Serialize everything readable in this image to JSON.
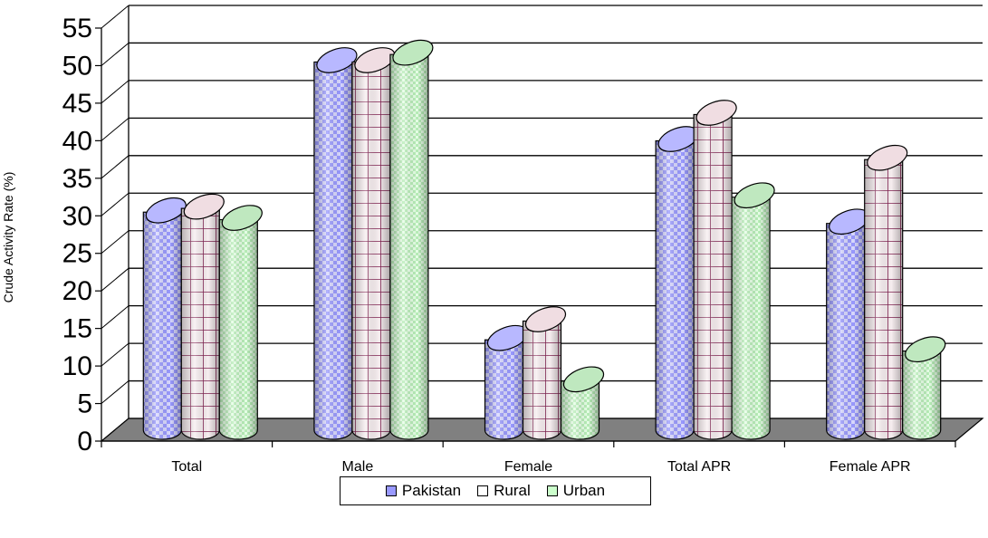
{
  "chart_data": {
    "type": "bar",
    "style": "3d-cylinder",
    "title": "",
    "ylabel": "Crude Activity Rate (%)",
    "xlabel": "",
    "ylim": [
      0,
      55
    ],
    "ytick_step": 5,
    "grid": true,
    "legend_position": "bottom",
    "categories": [
      "Total",
      "Male",
      "Female",
      "Total APR",
      "Female APR"
    ],
    "series": [
      {
        "name": "Pakistan",
        "values": [
          30,
          50,
          13,
          39.5,
          28.5
        ],
        "color": "#9999ff",
        "pattern": "checker"
      },
      {
        "name": "Rural",
        "values": [
          30.5,
          50,
          15.5,
          43,
          37
        ],
        "color": "#f2dede",
        "pattern": "grid"
      },
      {
        "name": "Urban",
        "values": [
          29,
          51,
          7.5,
          32,
          11.5
        ],
        "color": "#ccffcc",
        "pattern": "dots"
      }
    ],
    "colors": {
      "floor": "#808080",
      "grid": "#000000",
      "grid_line_color": "#7f1f4f"
    }
  }
}
